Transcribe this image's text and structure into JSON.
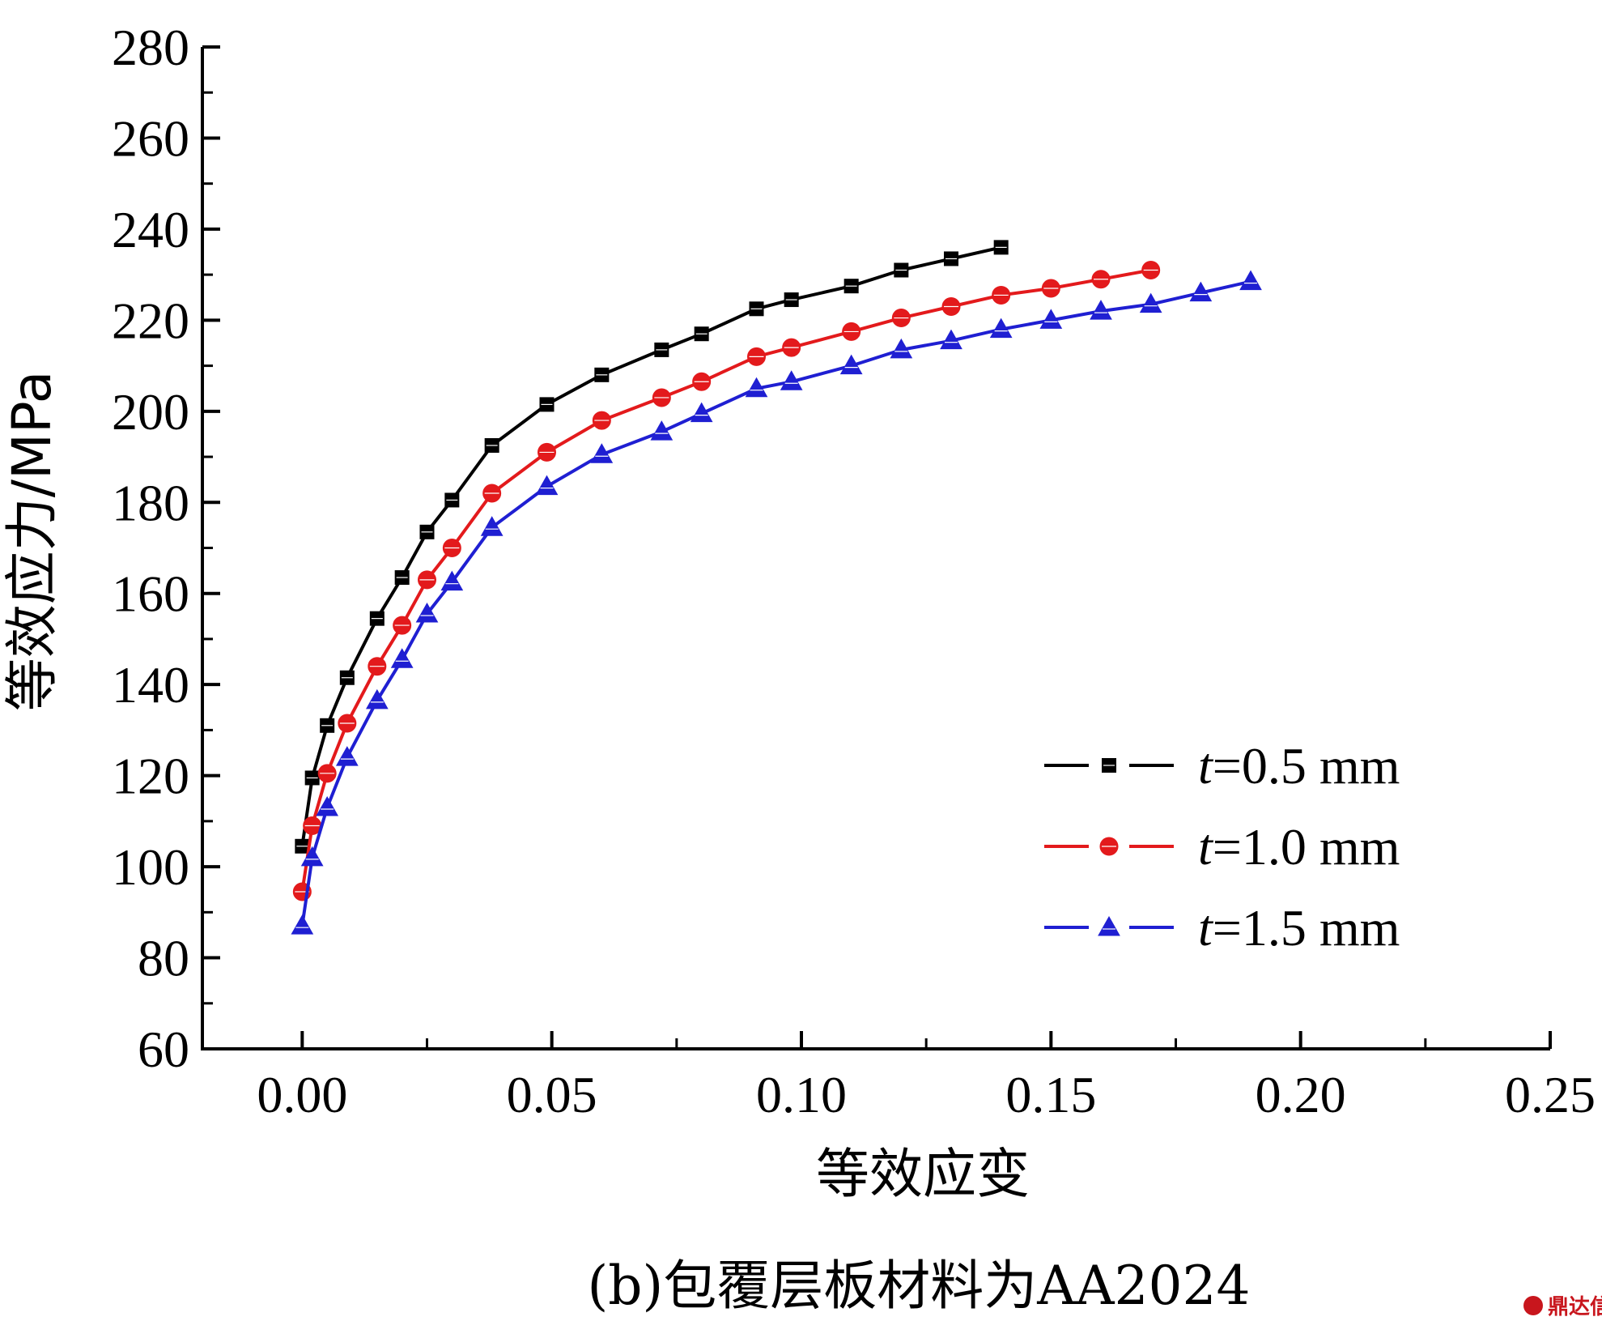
{
  "chart_data": {
    "type": "line",
    "xlabel": "等效应变",
    "ylabel": "等效应力/MPa",
    "xlim": [
      -0.02,
      0.25
    ],
    "ylim": [
      60,
      280
    ],
    "xticks": [
      "0.00",
      "0.05",
      "0.10",
      "0.15",
      "0.20",
      "0.25"
    ],
    "yticks": [
      "60",
      "80",
      "100",
      "120",
      "140",
      "160",
      "180",
      "200",
      "220",
      "240",
      "260",
      "280"
    ],
    "grid": false,
    "legend_position": "lower-right",
    "series": [
      {
        "name_var": "t",
        "name_rest": "=0.5 mm",
        "color": "#000000",
        "marker": "square",
        "x": [
          0.0,
          0.002,
          0.005,
          0.009,
          0.015,
          0.02,
          0.025,
          0.03,
          0.038,
          0.049,
          0.06,
          0.072,
          0.08,
          0.091,
          0.098,
          0.11,
          0.12,
          0.13,
          0.14
        ],
        "y": [
          104.5,
          119.5,
          131,
          141.5,
          154.5,
          163.5,
          173.5,
          180.5,
          192.5,
          201.5,
          208,
          213.5,
          217,
          222.5,
          224.5,
          227.5,
          231,
          233.5,
          236
        ]
      },
      {
        "name_var": "t",
        "name_rest": "=1.0 mm",
        "color": "#e31a1c",
        "marker": "circle",
        "x": [
          0.0,
          0.002,
          0.005,
          0.009,
          0.015,
          0.02,
          0.025,
          0.03,
          0.038,
          0.049,
          0.06,
          0.072,
          0.08,
          0.091,
          0.098,
          0.11,
          0.12,
          0.13,
          0.14,
          0.15,
          0.16,
          0.17
        ],
        "y": [
          94.5,
          109,
          120.5,
          131.5,
          144,
          153,
          163,
          170,
          182,
          191,
          198,
          203,
          206.5,
          212,
          214,
          217.5,
          220.5,
          223,
          225.5,
          227,
          229,
          231
        ]
      },
      {
        "name_var": "t",
        "name_rest": "=1.5 mm",
        "color": "#1f1fd2",
        "marker": "triangle",
        "x": [
          0.0,
          0.002,
          0.005,
          0.009,
          0.015,
          0.02,
          0.025,
          0.03,
          0.038,
          0.049,
          0.06,
          0.072,
          0.08,
          0.091,
          0.098,
          0.11,
          0.12,
          0.13,
          0.14,
          0.15,
          0.16,
          0.17,
          0.18,
          0.19
        ],
        "y": [
          87,
          102,
          113,
          124,
          136.5,
          145.5,
          155.5,
          162.5,
          174.5,
          183.5,
          190.5,
          195.5,
          199.5,
          205,
          206.5,
          210,
          213.5,
          215.5,
          218,
          220,
          222,
          223.5,
          226,
          228.5
        ]
      }
    ]
  },
  "caption": "(b)包覆层板材料为AA2024",
  "watermark": "鼎达信"
}
